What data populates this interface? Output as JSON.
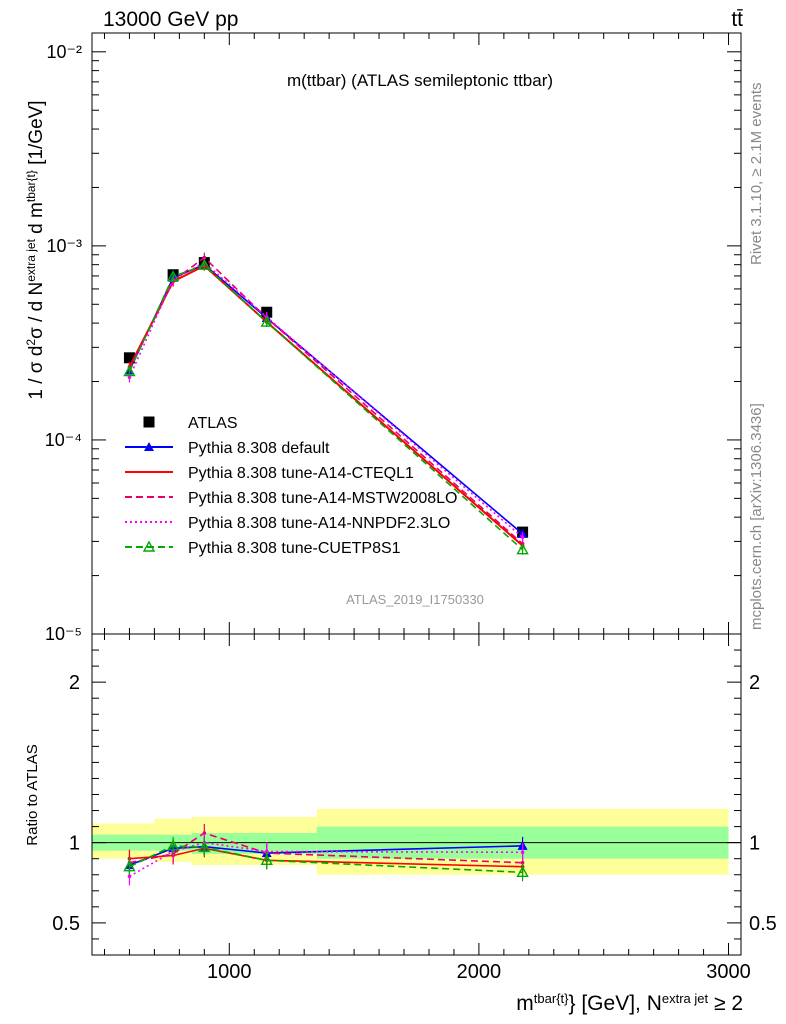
{
  "header": {
    "left_title": "13000 GeV pp",
    "right_title": "tt̄"
  },
  "side_labels": {
    "rivet": "Rivet 3.1.10, ≥ 2.1M events",
    "mcplots": "mcplots.cern.ch [arXiv:1306.3436]"
  },
  "chart_data": [
    {
      "type": "line",
      "title": "m(ttbar) (ATLAS semileptonic ttbar)",
      "watermark": "ATLAS_2019_I1750330",
      "ylabel": "1 / σ d²σ / d N^{extra jet} d m^{tbar{t}} [1/GeV]",
      "xlim": [
        450,
        3050
      ],
      "ylim": [
        1e-05,
        0.0125
      ],
      "yscale": "log",
      "x_ticks": [
        1000,
        2000,
        3000
      ],
      "y_tick_labels": [
        "10⁻⁵",
        "10⁻⁴",
        "10⁻³",
        "10⁻²"
      ],
      "legend_position": "lower-left",
      "bins": [
        [
          450,
          700
        ],
        [
          700,
          850
        ],
        [
          850,
          950
        ],
        [
          950,
          1350
        ],
        [
          1350,
          3000
        ]
      ],
      "x": [
        600,
        775,
        900,
        1150,
        2175
      ],
      "series": [
        {
          "name": "ATLAS",
          "color": "#000000",
          "marker": "square",
          "style": "none",
          "values": [
            0.000265,
            0.00071,
            0.00082,
            0.000455,
            3.35e-05
          ]
        },
        {
          "name": "Pythia 8.308 default",
          "color": "#0000ff",
          "marker": "triangle",
          "style": "solid",
          "values": [
            0.000228,
            0.000685,
            0.0008,
            0.000425,
            3.28e-05
          ]
        },
        {
          "name": "Pythia 8.308 tune-A14-CTEQL1",
          "color": "#ff0000",
          "marker": "none",
          "style": "solid",
          "values": [
            0.000238,
            0.000655,
            0.00079,
            0.000405,
            2.85e-05
          ]
        },
        {
          "name": "Pythia 8.308 tune-A14-MSTW2008LO",
          "color": "#e8006e",
          "marker": "none",
          "style": "dashed",
          "values": [
            0.000232,
            0.00066,
            0.00087,
            0.000425,
            2.92e-05
          ]
        },
        {
          "name": "Pythia 8.308 tune-A14-NNPDF2.3LO",
          "color": "#ff00ff",
          "marker": "none",
          "style": "dotted",
          "values": [
            0.00021,
            0.00067,
            0.00082,
            0.00043,
            3.15e-05
          ]
        },
        {
          "name": "Pythia 8.308 tune-CUETP8S1",
          "color": "#00aa00",
          "marker": "open-triangle",
          "style": "dashed",
          "values": [
            0.000225,
            0.000695,
            0.000795,
            0.000405,
            2.72e-05
          ]
        }
      ]
    },
    {
      "type": "line",
      "ylabel": "Ratio to ATLAS",
      "xlabel": "m^{tbar{t}} [GeV], N^{extra jet} ≥ 2",
      "xlim": [
        450,
        3050
      ],
      "ylim": [
        0.3,
        2.3
      ],
      "x_ticks": [
        1000,
        2000,
        3000
      ],
      "y_ticks": [
        0.5,
        1,
        2
      ],
      "x": [
        600,
        775,
        900,
        1150,
        2175
      ],
      "bands": {
        "bins": [
          [
            450,
            700
          ],
          [
            700,
            850
          ],
          [
            850,
            950
          ],
          [
            950,
            1350
          ],
          [
            1350,
            3000
          ]
        ],
        "inner": [
          [
            0.95,
            1.05
          ],
          [
            0.95,
            1.05
          ],
          [
            0.93,
            1.06
          ],
          [
            0.93,
            1.06
          ],
          [
            0.9,
            1.1
          ]
        ],
        "outer": [
          [
            0.9,
            1.12
          ],
          [
            0.88,
            1.15
          ],
          [
            0.86,
            1.16
          ],
          [
            0.86,
            1.16
          ],
          [
            0.8,
            1.21
          ]
        ]
      },
      "series": [
        {
          "name": "Pythia 8.308 default",
          "color": "#0000ff",
          "values": [
            0.86,
            0.965,
            0.975,
            0.935,
            0.98
          ]
        },
        {
          "name": "Pythia 8.308 tune-A14-CTEQL1",
          "color": "#ff0000",
          "values": [
            0.9,
            0.92,
            0.965,
            0.89,
            0.85
          ]
        },
        {
          "name": "Pythia 8.308 tune-A14-MSTW2008LO",
          "color": "#e8006e",
          "values": [
            0.875,
            0.93,
            1.06,
            0.935,
            0.875
          ]
        },
        {
          "name": "Pythia 8.308 tune-A14-NNPDF2.3LO",
          "color": "#ff00ff",
          "values": [
            0.79,
            0.945,
            1.0,
            0.945,
            0.94
          ]
        },
        {
          "name": "Pythia 8.308 tune-CUETP8S1",
          "color": "#00aa00",
          "values": [
            0.85,
            0.98,
            0.97,
            0.89,
            0.815
          ]
        }
      ]
    }
  ]
}
